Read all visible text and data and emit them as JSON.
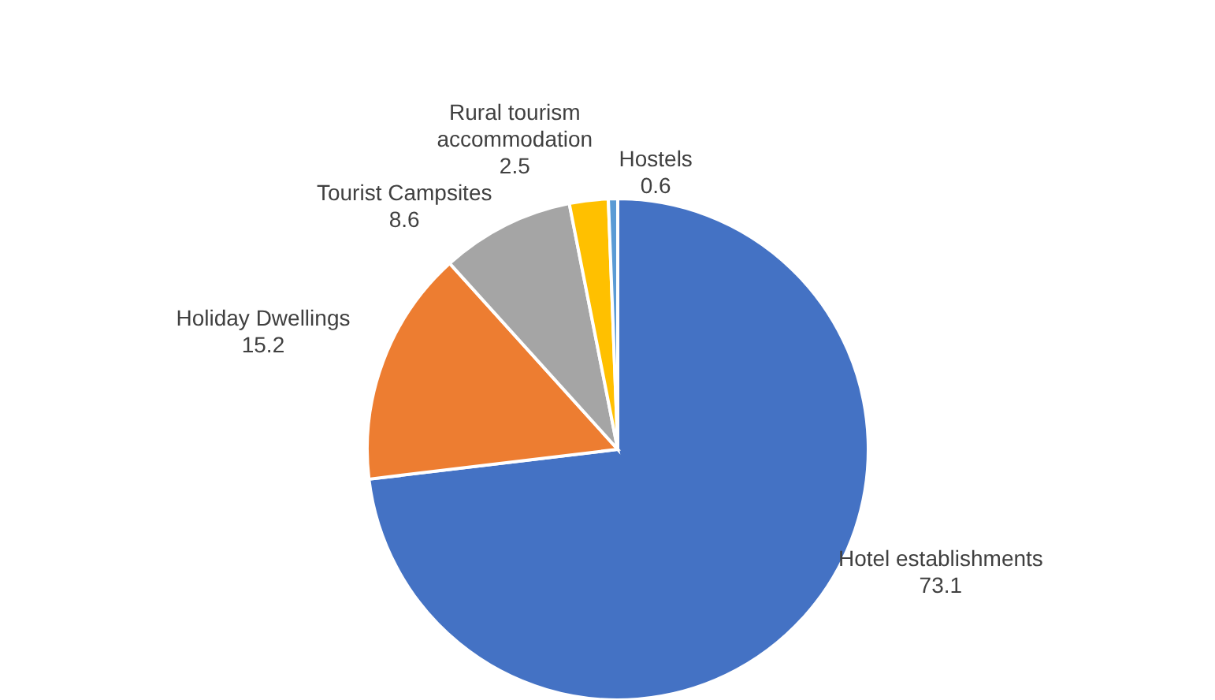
{
  "chart_data": {
    "type": "pie",
    "categories": [
      "Hotel establishments",
      "Holiday Dwellings",
      "Tourist Campsites",
      "Rural tourism accommodation",
      "Hostels"
    ],
    "values": [
      73.1,
      15.2,
      8.6,
      2.5,
      0.6
    ],
    "colors": [
      "#4472c4",
      "#ed7d31",
      "#a5a5a5",
      "#ffc000",
      "#5b9bd5"
    ],
    "data_labels": true
  }
}
